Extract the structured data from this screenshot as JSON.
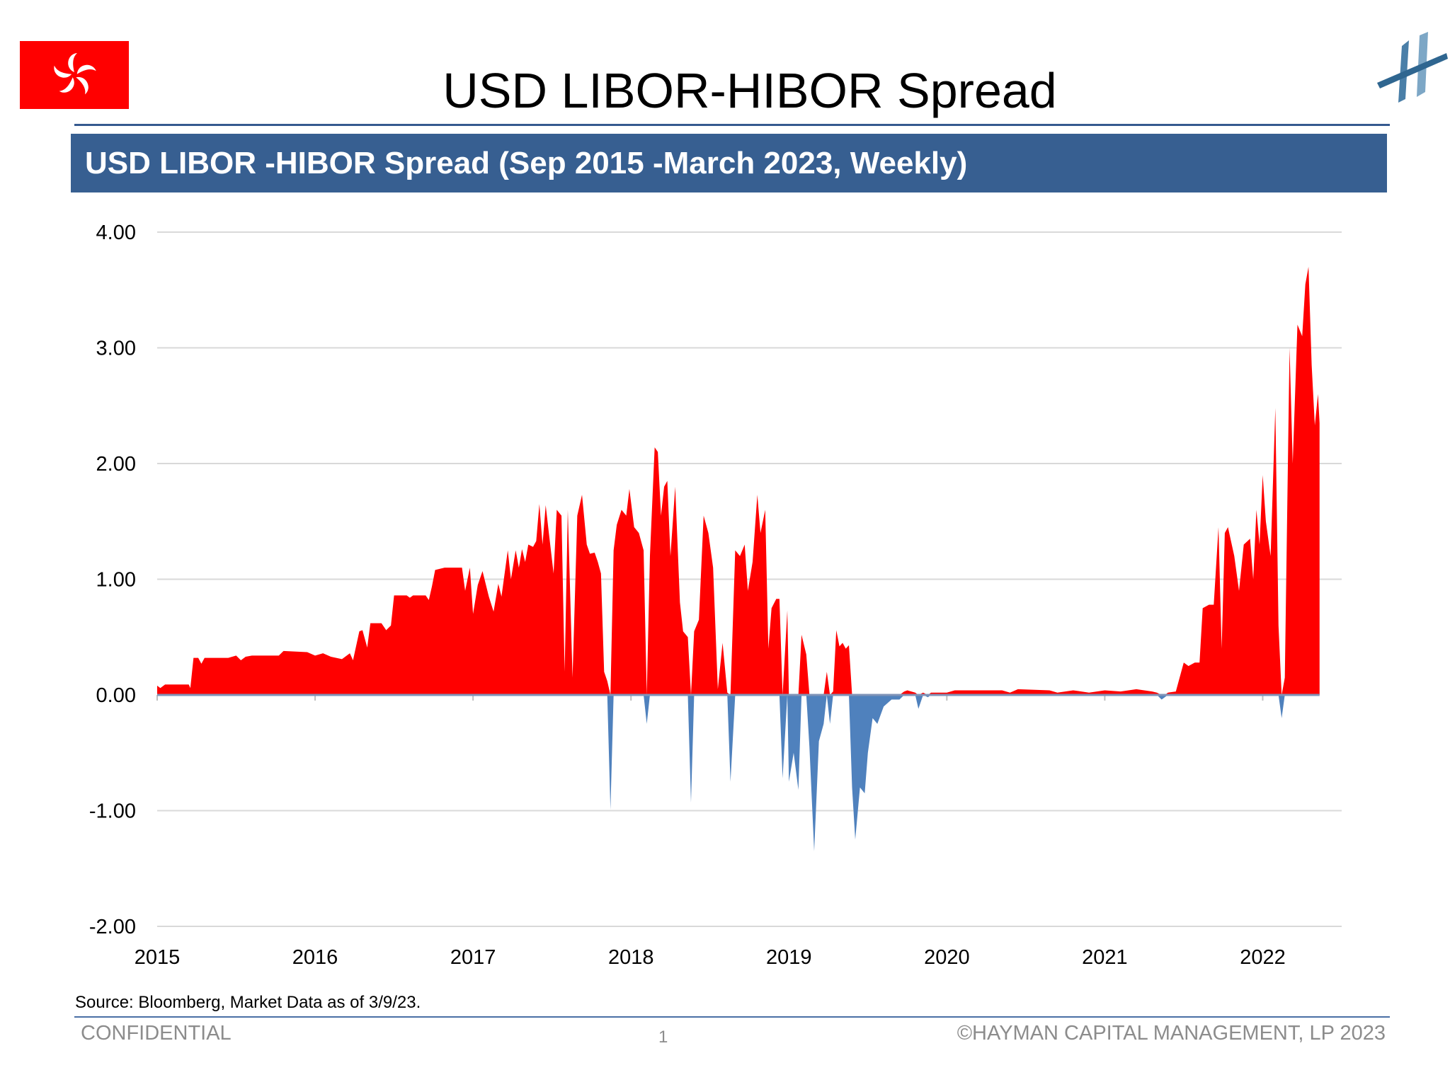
{
  "header": {
    "title": "USD LIBOR-HIBOR Spread",
    "banner": "USD LIBOR -HIBOR  Spread (Sep 2015 -March 2023, Weekly)"
  },
  "icons": {
    "flag": "hong-kong-flag-icon",
    "logo": "hayman-logo-icon"
  },
  "colors": {
    "positive": "#ff0000",
    "negative": "#4f81bd",
    "banner": "#375f91",
    "rule": "#35598f"
  },
  "chart_data": {
    "type": "area",
    "title": "",
    "xlabel": "",
    "ylabel": "",
    "ylim": [
      -2.0,
      4.0
    ],
    "xlim": [
      2015.0,
      2022.5
    ],
    "grid": true,
    "legend": "none",
    "yticks": [
      "4.00",
      "3.00",
      "2.00",
      "1.00",
      "0.00",
      "-1.00",
      "-2.00"
    ],
    "xticks": [
      "2015",
      "2016",
      "2017",
      "2018",
      "2019",
      "2020",
      "2021",
      "2022"
    ],
    "series": [
      {
        "values": [
          [
            2015.0,
            0.08
          ],
          [
            2015.02,
            0.06
          ],
          [
            2015.05,
            0.09
          ],
          [
            2015.2,
            0.09
          ],
          [
            2015.21,
            0.06
          ],
          [
            2015.23,
            0.32
          ],
          [
            2015.26,
            0.32
          ],
          [
            2015.28,
            0.27
          ],
          [
            2015.3,
            0.32
          ],
          [
            2015.45,
            0.32
          ],
          [
            2015.5,
            0.34
          ],
          [
            2015.53,
            0.3
          ],
          [
            2015.56,
            0.33
          ],
          [
            2015.6,
            0.34
          ],
          [
            2015.77,
            0.34
          ],
          [
            2015.8,
            0.38
          ],
          [
            2015.95,
            0.37
          ],
          [
            2016.0,
            0.34
          ],
          [
            2016.05,
            0.36
          ],
          [
            2016.1,
            0.33
          ],
          [
            2016.17,
            0.31
          ],
          [
            2016.22,
            0.36
          ],
          [
            2016.24,
            0.3
          ],
          [
            2016.28,
            0.55
          ],
          [
            2016.3,
            0.56
          ],
          [
            2016.33,
            0.41
          ],
          [
            2016.35,
            0.62
          ],
          [
            2016.42,
            0.62
          ],
          [
            2016.45,
            0.56
          ],
          [
            2016.48,
            0.6
          ],
          [
            2016.5,
            0.86
          ],
          [
            2016.58,
            0.86
          ],
          [
            2016.6,
            0.84
          ],
          [
            2016.62,
            0.86
          ],
          [
            2016.7,
            0.86
          ],
          [
            2016.72,
            0.82
          ],
          [
            2016.74,
            0.94
          ],
          [
            2016.76,
            1.08
          ],
          [
            2016.82,
            1.1
          ],
          [
            2016.93,
            1.1
          ],
          [
            2016.95,
            0.9
          ],
          [
            2016.98,
            1.1
          ],
          [
            2017.0,
            0.7
          ],
          [
            2017.03,
            0.95
          ],
          [
            2017.06,
            1.07
          ],
          [
            2017.1,
            0.85
          ],
          [
            2017.13,
            0.72
          ],
          [
            2017.16,
            0.96
          ],
          [
            2017.18,
            0.85
          ],
          [
            2017.22,
            1.25
          ],
          [
            2017.24,
            1.0
          ],
          [
            2017.27,
            1.25
          ],
          [
            2017.29,
            1.1
          ],
          [
            2017.31,
            1.26
          ],
          [
            2017.33,
            1.15
          ],
          [
            2017.35,
            1.3
          ],
          [
            2017.38,
            1.28
          ],
          [
            2017.4,
            1.33
          ],
          [
            2017.42,
            1.65
          ],
          [
            2017.44,
            1.3
          ],
          [
            2017.46,
            1.64
          ],
          [
            2017.48,
            1.4
          ],
          [
            2017.51,
            1.05
          ],
          [
            2017.53,
            1.6
          ],
          [
            2017.56,
            1.55
          ],
          [
            2017.58,
            0.2
          ],
          [
            2017.6,
            1.6
          ],
          [
            2017.63,
            0.15
          ],
          [
            2017.66,
            1.55
          ],
          [
            2017.69,
            1.73
          ],
          [
            2017.72,
            1.3
          ],
          [
            2017.74,
            1.22
          ],
          [
            2017.77,
            1.23
          ],
          [
            2017.79,
            1.15
          ],
          [
            2017.81,
            1.05
          ],
          [
            2017.83,
            0.2
          ],
          [
            2017.85,
            0.12
          ],
          [
            2017.87,
            -0.99
          ],
          [
            2017.89,
            1.25
          ],
          [
            2017.91,
            1.47
          ],
          [
            2017.94,
            1.6
          ],
          [
            2017.97,
            1.55
          ],
          [
            2017.99,
            1.78
          ],
          [
            2018.02,
            1.45
          ],
          [
            2018.05,
            1.4
          ],
          [
            2018.08,
            1.25
          ],
          [
            2018.1,
            -0.25
          ],
          [
            2018.12,
            1.2
          ],
          [
            2018.15,
            2.14
          ],
          [
            2018.17,
            2.1
          ],
          [
            2018.19,
            1.55
          ],
          [
            2018.21,
            1.8
          ],
          [
            2018.23,
            1.85
          ],
          [
            2018.25,
            1.2
          ],
          [
            2018.28,
            1.8
          ],
          [
            2018.31,
            0.8
          ],
          [
            2018.33,
            0.55
          ],
          [
            2018.36,
            0.5
          ],
          [
            2018.38,
            -0.93
          ],
          [
            2018.4,
            0.55
          ],
          [
            2018.43,
            0.65
          ],
          [
            2018.46,
            1.55
          ],
          [
            2018.49,
            1.4
          ],
          [
            2018.52,
            1.1
          ],
          [
            2018.55,
            0.05
          ],
          [
            2018.58,
            0.45
          ],
          [
            2018.61,
            0.02
          ],
          [
            2018.63,
            -0.75
          ],
          [
            2018.66,
            1.25
          ],
          [
            2018.69,
            1.2
          ],
          [
            2018.72,
            1.3
          ],
          [
            2018.74,
            0.9
          ],
          [
            2018.77,
            1.15
          ],
          [
            2018.8,
            1.73
          ],
          [
            2018.82,
            1.4
          ],
          [
            2018.85,
            1.6
          ],
          [
            2018.87,
            0.4
          ],
          [
            2018.89,
            0.75
          ],
          [
            2018.92,
            0.83
          ],
          [
            2018.94,
            0.83
          ],
          [
            2018.96,
            -0.72
          ],
          [
            2018.99,
            0.73
          ],
          [
            2019.0,
            -0.75
          ],
          [
            2019.03,
            -0.5
          ],
          [
            2019.06,
            -0.82
          ],
          [
            2019.08,
            0.52
          ],
          [
            2019.11,
            0.35
          ],
          [
            2019.13,
            -0.45
          ],
          [
            2019.16,
            -1.35
          ],
          [
            2019.19,
            -0.4
          ],
          [
            2019.22,
            -0.25
          ],
          [
            2019.24,
            0.2
          ],
          [
            2019.26,
            -0.25
          ],
          [
            2019.28,
            0.03
          ],
          [
            2019.3,
            0.56
          ],
          [
            2019.32,
            0.42
          ],
          [
            2019.34,
            0.45
          ],
          [
            2019.36,
            0.4
          ],
          [
            2019.38,
            0.43
          ],
          [
            2019.4,
            -0.8
          ],
          [
            2019.42,
            -1.25
          ],
          [
            2019.45,
            -0.8
          ],
          [
            2019.48,
            -0.85
          ],
          [
            2019.5,
            -0.5
          ],
          [
            2019.53,
            -0.2
          ],
          [
            2019.56,
            -0.25
          ],
          [
            2019.6,
            -0.1
          ],
          [
            2019.65,
            -0.04
          ],
          [
            2019.7,
            -0.04
          ],
          [
            2019.73,
            0.03
          ],
          [
            2019.75,
            0.04
          ],
          [
            2019.8,
            0.02
          ],
          [
            2019.82,
            -0.12
          ],
          [
            2019.85,
            0.02
          ],
          [
            2019.88,
            -0.02
          ],
          [
            2019.9,
            0.02
          ],
          [
            2020.0,
            0.02
          ],
          [
            2020.05,
            0.04
          ],
          [
            2020.35,
            0.04
          ],
          [
            2020.4,
            0.02
          ],
          [
            2020.45,
            0.05
          ],
          [
            2020.65,
            0.04
          ],
          [
            2020.7,
            0.02
          ],
          [
            2020.8,
            0.04
          ],
          [
            2020.9,
            0.02
          ],
          [
            2021.0,
            0.04
          ],
          [
            2021.1,
            0.03
          ],
          [
            2021.2,
            0.05
          ],
          [
            2021.3,
            0.03
          ],
          [
            2021.33,
            0.02
          ],
          [
            2021.36,
            -0.04
          ],
          [
            2021.38,
            -0.02
          ],
          [
            2021.4,
            0.02
          ],
          [
            2021.45,
            0.03
          ],
          [
            2021.5,
            0.28
          ],
          [
            2021.53,
            0.25
          ],
          [
            2021.57,
            0.28
          ],
          [
            2021.6,
            0.28
          ],
          [
            2021.62,
            0.75
          ],
          [
            2021.66,
            0.78
          ],
          [
            2021.69,
            0.78
          ],
          [
            2021.72,
            1.45
          ],
          [
            2021.74,
            0.4
          ],
          [
            2021.76,
            1.4
          ],
          [
            2021.78,
            1.45
          ],
          [
            2021.82,
            1.2
          ],
          [
            2021.85,
            0.9
          ],
          [
            2021.88,
            1.3
          ],
          [
            2021.92,
            1.35
          ],
          [
            2021.94,
            1.0
          ],
          [
            2021.96,
            1.6
          ],
          [
            2021.98,
            1.3
          ],
          [
            2022.0,
            1.9
          ],
          [
            2022.02,
            1.5
          ],
          [
            2022.05,
            1.2
          ],
          [
            2022.08,
            2.48
          ],
          [
            2022.1,
            0.6
          ],
          [
            2022.12,
            -0.2
          ],
          [
            2022.14,
            0.15
          ],
          [
            2022.17,
            3.0
          ],
          [
            2022.19,
            2.0
          ],
          [
            2022.22,
            3.2
          ],
          [
            2022.25,
            3.1
          ],
          [
            2022.27,
            3.55
          ],
          [
            2022.29,
            3.7
          ],
          [
            2022.31,
            2.85
          ],
          [
            2022.33,
            2.33
          ],
          [
            2022.35,
            2.6
          ],
          [
            2022.36,
            2.35
          ]
        ]
      }
    ]
  },
  "footer": {
    "source": "Source: Bloomberg, Market Data as of 3/9/23.",
    "left": "CONFIDENTIAL",
    "page": "1",
    "right": "©HAYMAN CAPITAL MANAGEMENT, LP 2023"
  }
}
